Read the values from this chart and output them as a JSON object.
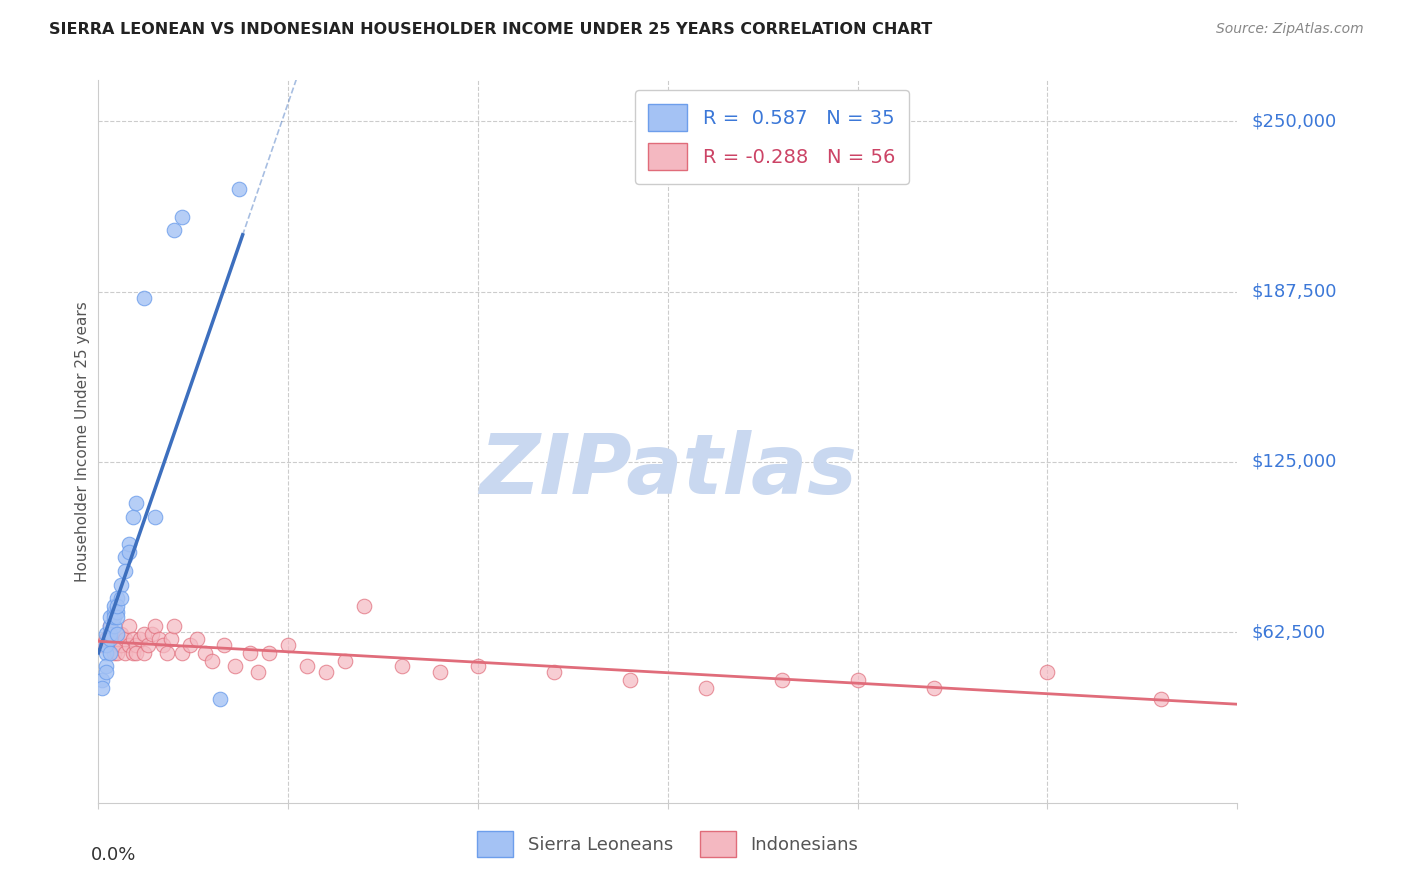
{
  "title": "SIERRA LEONEAN VS INDONESIAN HOUSEHOLDER INCOME UNDER 25 YEARS CORRELATION CHART",
  "source": "Source: ZipAtlas.com",
  "ylabel": "Householder Income Under 25 years",
  "ytick_labels": [
    "$62,500",
    "$125,000",
    "$187,500",
    "$250,000"
  ],
  "ytick_values": [
    62500,
    125000,
    187500,
    250000
  ],
  "ylim": [
    0,
    265000
  ],
  "xlim": [
    0.0,
    0.3
  ],
  "legend_sl": "Sierra Leoneans",
  "legend_id": "Indonesians",
  "R_sl": 0.587,
  "N_sl": 35,
  "R_id": -0.288,
  "N_id": 56,
  "color_sl": "#a4c2f4",
  "color_id": "#f4b8c1",
  "color_sl_edge": "#6d9eeb",
  "color_id_edge": "#e06c7a",
  "color_sl_line": "#3d6fbe",
  "color_id_line": "#e06c7a",
  "color_text_blue": "#3c78d8",
  "color_text_pink": "#cc4466",
  "color_grid": "#cccccc",
  "watermark_zip_color": "#ccd9f0",
  "watermark_atlas_color": "#b8cce4",
  "sl_x": [
    0.001,
    0.001,
    0.002,
    0.002,
    0.002,
    0.002,
    0.002,
    0.003,
    0.003,
    0.003,
    0.003,
    0.003,
    0.004,
    0.004,
    0.004,
    0.004,
    0.005,
    0.005,
    0.005,
    0.005,
    0.005,
    0.006,
    0.006,
    0.007,
    0.007,
    0.008,
    0.008,
    0.009,
    0.01,
    0.012,
    0.015,
    0.02,
    0.022,
    0.032,
    0.037
  ],
  "sl_y": [
    45000,
    42000,
    55000,
    58000,
    62000,
    50000,
    48000,
    60000,
    65000,
    62000,
    68000,
    55000,
    70000,
    65000,
    68000,
    72000,
    70000,
    75000,
    68000,
    72000,
    62000,
    80000,
    75000,
    90000,
    85000,
    95000,
    92000,
    105000,
    110000,
    185000,
    105000,
    210000,
    215000,
    38000,
    225000
  ],
  "id_x": [
    0.001,
    0.002,
    0.003,
    0.003,
    0.004,
    0.004,
    0.005,
    0.005,
    0.005,
    0.006,
    0.006,
    0.007,
    0.007,
    0.008,
    0.008,
    0.009,
    0.009,
    0.01,
    0.01,
    0.011,
    0.012,
    0.012,
    0.013,
    0.014,
    0.015,
    0.016,
    0.017,
    0.018,
    0.019,
    0.02,
    0.022,
    0.024,
    0.026,
    0.028,
    0.03,
    0.033,
    0.036,
    0.04,
    0.042,
    0.045,
    0.05,
    0.055,
    0.06,
    0.065,
    0.07,
    0.08,
    0.09,
    0.1,
    0.12,
    0.14,
    0.16,
    0.18,
    0.2,
    0.22,
    0.25,
    0.28
  ],
  "id_y": [
    58000,
    60000,
    62000,
    65000,
    58000,
    55000,
    60000,
    62000,
    55000,
    58000,
    62000,
    55000,
    60000,
    65000,
    58000,
    55000,
    60000,
    58000,
    55000,
    60000,
    62000,
    55000,
    58000,
    62000,
    65000,
    60000,
    58000,
    55000,
    60000,
    65000,
    55000,
    58000,
    60000,
    55000,
    52000,
    58000,
    50000,
    55000,
    48000,
    55000,
    58000,
    50000,
    48000,
    52000,
    72000,
    50000,
    48000,
    50000,
    48000,
    45000,
    42000,
    45000,
    45000,
    42000,
    48000,
    38000
  ]
}
